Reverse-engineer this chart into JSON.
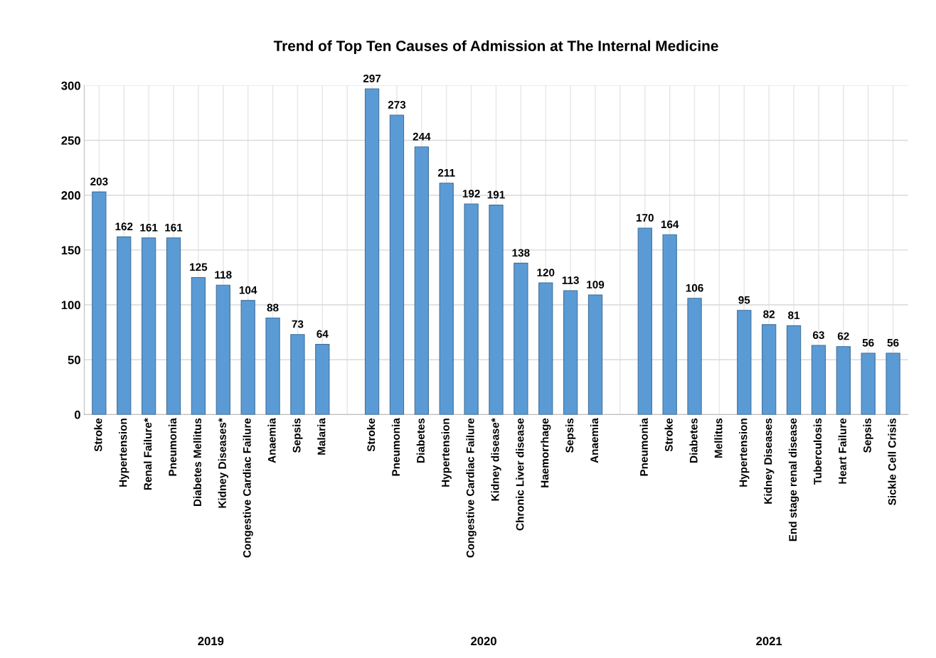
{
  "chart_data": {
    "type": "bar",
    "title": "Trend of Top Ten Causes of Admission at The Internal Medicine",
    "categories": [
      "Stroke",
      "Hypertension",
      "Renal Failure*",
      "Pneumonia",
      "Diabetes Mellitus",
      "Kidney Diseases*",
      "Congestive Cardiac Failure",
      "Anaemia",
      "Sepsis",
      "Malaria",
      null,
      "Stroke",
      "Pneumonia",
      "Diabetes",
      "Hypertension",
      "Congestive Cardiac Failure",
      "Kidney disease*",
      "Chronic Liver disease",
      "Haemorrhage",
      "Sepsis",
      "Anaemia",
      null,
      "Pneumonia",
      "Stroke",
      "Diabetes",
      "Mellitus",
      "Hypertension",
      "Kidney Diseases",
      "End stage renal disease",
      "Tuberculosis",
      "Heart Failure",
      "Sepsis",
      "Sickle Cell Crisis"
    ],
    "values": [
      203,
      162,
      161,
      161,
      125,
      118,
      104,
      88,
      73,
      64,
      null,
      297,
      273,
      244,
      211,
      192,
      191,
      138,
      120,
      113,
      109,
      null,
      170,
      164,
      106,
      null,
      95,
      82,
      81,
      63,
      62,
      56,
      56
    ],
    "color": "#5b9bd5",
    "ylim": [
      0,
      300
    ],
    "yticks": [
      0,
      50,
      100,
      150,
      200,
      250,
      300
    ],
    "grid": true,
    "data_labels": true,
    "legend": false,
    "annotations": [
      "2019",
      "2020",
      "2021"
    ]
  }
}
